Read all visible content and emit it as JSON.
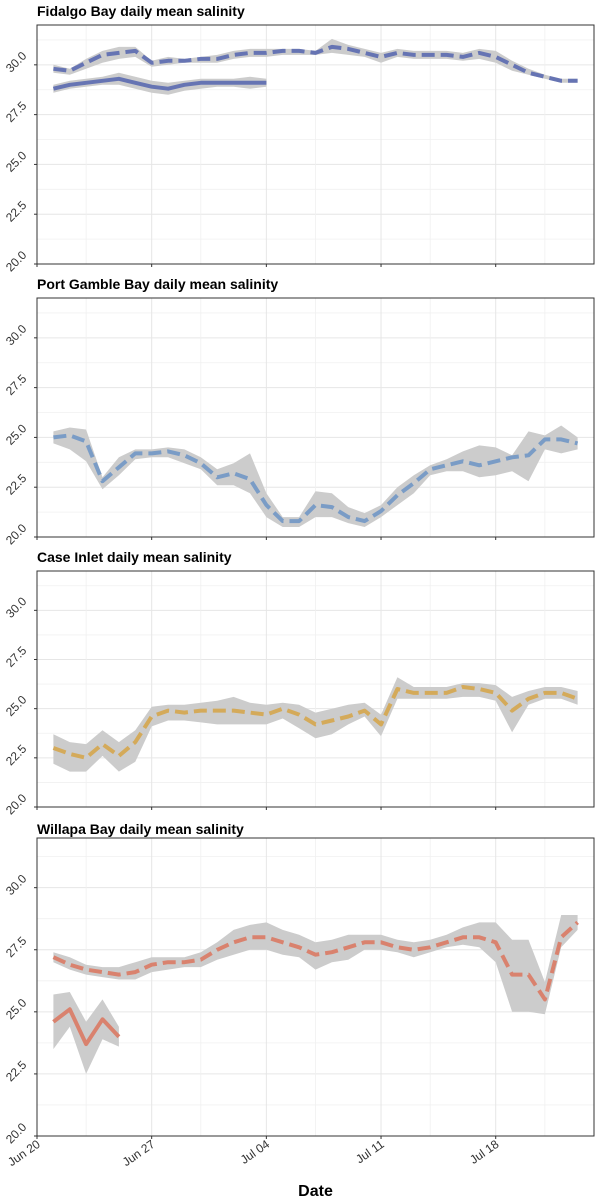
{
  "figure": {
    "xlabel": "Date",
    "x_ticks": [
      {
        "date": "2023-06-20",
        "label": "Jun 20"
      },
      {
        "date": "2023-06-27",
        "label": "Jun 27"
      },
      {
        "date": "2023-07-04",
        "label": "Jul 04"
      },
      {
        "date": "2023-07-11",
        "label": "Jul 11"
      },
      {
        "date": "2023-07-18",
        "label": "Jul 18"
      }
    ],
    "ribbon_color": "#cccccc",
    "grid_color": "#e6e6e6"
  },
  "chart_data": [
    {
      "type": "line",
      "title": "Fidalgo Bay daily mean salinity",
      "xlim": [
        "2023-06-20",
        "2023-07-24"
      ],
      "ylim": [
        20.0,
        32.0
      ],
      "y_ticks": [
        "20.0",
        "22.5",
        "25.0",
        "27.5",
        "30.0"
      ],
      "series": [
        {
          "style": "dashed",
          "color": "#6674b3",
          "x": [
            "2023-06-21",
            "2023-06-22",
            "2023-06-23",
            "2023-06-24",
            "2023-06-25",
            "2023-06-26",
            "2023-06-27",
            "2023-06-28",
            "2023-06-29",
            "2023-06-30",
            "2023-07-01",
            "2023-07-02",
            "2023-07-03",
            "2023-07-04",
            "2023-07-05",
            "2023-07-06",
            "2023-07-07",
            "2023-07-08",
            "2023-07-09",
            "2023-07-10",
            "2023-07-11",
            "2023-07-12",
            "2023-07-13",
            "2023-07-14",
            "2023-07-15",
            "2023-07-16",
            "2023-07-17",
            "2023-07-18",
            "2023-07-19",
            "2023-07-20",
            "2023-07-21",
            "2023-07-22",
            "2023-07-23"
          ],
          "y": [
            29.8,
            29.7,
            30.1,
            30.5,
            30.6,
            30.7,
            30.1,
            30.2,
            30.2,
            30.3,
            30.3,
            30.5,
            30.6,
            30.6,
            30.7,
            30.7,
            30.6,
            30.9,
            30.8,
            30.6,
            30.4,
            30.6,
            30.5,
            30.5,
            30.5,
            30.4,
            30.6,
            30.4,
            30.0,
            29.6,
            29.4,
            29.2,
            29.2
          ],
          "lower": [
            29.6,
            29.5,
            29.8,
            30.1,
            30.3,
            30.4,
            29.9,
            30.0,
            30.1,
            30.1,
            30.1,
            30.3,
            30.4,
            30.4,
            30.5,
            30.5,
            30.5,
            30.6,
            30.5,
            30.4,
            30.1,
            30.4,
            30.3,
            30.3,
            30.3,
            30.2,
            30.3,
            30.1,
            29.7,
            29.5,
            29.3,
            29.1,
            29.1
          ],
          "upper": [
            30.0,
            29.8,
            30.3,
            30.7,
            30.9,
            30.9,
            30.2,
            30.4,
            30.3,
            30.4,
            30.5,
            30.7,
            30.8,
            30.8,
            30.8,
            30.8,
            30.7,
            31.3,
            31.0,
            30.8,
            30.6,
            30.8,
            30.7,
            30.7,
            30.7,
            30.6,
            30.8,
            30.7,
            30.2,
            29.8,
            29.5,
            29.3,
            29.3
          ]
        },
        {
          "style": "solid",
          "color": "#6674b3",
          "x": [
            "2023-06-21",
            "2023-06-22",
            "2023-06-23",
            "2023-06-24",
            "2023-06-25",
            "2023-06-26",
            "2023-06-27",
            "2023-06-28",
            "2023-06-29",
            "2023-06-30",
            "2023-07-01",
            "2023-07-02",
            "2023-07-03",
            "2023-07-04"
          ],
          "y": [
            28.8,
            29.0,
            29.1,
            29.2,
            29.3,
            29.1,
            28.9,
            28.8,
            29.0,
            29.1,
            29.1,
            29.1,
            29.1,
            29.1
          ],
          "lower": [
            28.6,
            28.8,
            28.9,
            29.0,
            29.0,
            28.8,
            28.6,
            28.5,
            28.7,
            28.8,
            28.9,
            28.9,
            28.8,
            28.9
          ],
          "upper": [
            29.0,
            29.2,
            29.3,
            29.4,
            29.6,
            29.4,
            29.2,
            29.1,
            29.2,
            29.3,
            29.3,
            29.3,
            29.4,
            29.3
          ]
        }
      ]
    },
    {
      "type": "line",
      "title": "Port Gamble Bay daily mean salinity",
      "xlim": [
        "2023-06-20",
        "2023-07-24"
      ],
      "ylim": [
        20.0,
        32.0
      ],
      "y_ticks": [
        "20.0",
        "22.5",
        "25.0",
        "27.5",
        "30.0"
      ],
      "series": [
        {
          "style": "dashed",
          "color": "#7a9cc6",
          "x": [
            "2023-06-21",
            "2023-06-22",
            "2023-06-23",
            "2023-06-24",
            "2023-06-25",
            "2023-06-26",
            "2023-06-27",
            "2023-06-28",
            "2023-06-29",
            "2023-06-30",
            "2023-07-01",
            "2023-07-02",
            "2023-07-03",
            "2023-07-04",
            "2023-07-05",
            "2023-07-06",
            "2023-07-07",
            "2023-07-08",
            "2023-07-09",
            "2023-07-10",
            "2023-07-11",
            "2023-07-12",
            "2023-07-13",
            "2023-07-14",
            "2023-07-15",
            "2023-07-16",
            "2023-07-17",
            "2023-07-18",
            "2023-07-19",
            "2023-07-20",
            "2023-07-21",
            "2023-07-22",
            "2023-07-23"
          ],
          "y": [
            25.0,
            25.1,
            24.8,
            22.8,
            23.5,
            24.2,
            24.2,
            24.3,
            24.1,
            23.7,
            23.0,
            23.2,
            22.9,
            21.6,
            20.8,
            20.8,
            21.6,
            21.5,
            21.0,
            20.8,
            21.3,
            22.1,
            22.7,
            23.4,
            23.6,
            23.8,
            23.6,
            23.8,
            24.0,
            24.1,
            24.9,
            24.9,
            24.7
          ],
          "lower": [
            24.7,
            24.4,
            23.8,
            22.4,
            23.1,
            23.9,
            24.0,
            24.0,
            23.7,
            23.4,
            22.6,
            22.6,
            22.2,
            21.0,
            20.5,
            20.5,
            21.0,
            21.0,
            20.7,
            20.5,
            21.0,
            21.6,
            22.2,
            23.1,
            23.3,
            23.3,
            23.0,
            23.1,
            23.3,
            22.8,
            24.4,
            24.2,
            24.4
          ],
          "upper": [
            25.3,
            25.5,
            25.4,
            23.0,
            24.0,
            24.4,
            24.4,
            24.5,
            24.4,
            24.0,
            23.4,
            23.7,
            24.2,
            22.2,
            21.0,
            21.0,
            22.3,
            22.2,
            21.5,
            21.2,
            21.6,
            22.5,
            23.1,
            23.6,
            23.9,
            24.3,
            24.6,
            24.5,
            24.1,
            25.3,
            25.1,
            25.6,
            25.0
          ]
        }
      ]
    },
    {
      "type": "line",
      "title": "Case Inlet daily mean salinity",
      "xlim": [
        "2023-06-20",
        "2023-07-24"
      ],
      "ylim": [
        20.0,
        32.0
      ],
      "y_ticks": [
        "20.0",
        "22.5",
        "25.0",
        "27.5",
        "30.0"
      ],
      "series": [
        {
          "style": "dashed",
          "color": "#d4aa5a",
          "x": [
            "2023-06-21",
            "2023-06-22",
            "2023-06-23",
            "2023-06-24",
            "2023-06-25",
            "2023-06-26",
            "2023-06-27",
            "2023-06-28",
            "2023-06-29",
            "2023-06-30",
            "2023-07-01",
            "2023-07-02",
            "2023-07-03",
            "2023-07-04",
            "2023-07-05",
            "2023-07-06",
            "2023-07-07",
            "2023-07-08",
            "2023-07-09",
            "2023-07-10",
            "2023-07-11",
            "2023-07-12",
            "2023-07-13",
            "2023-07-14",
            "2023-07-15",
            "2023-07-16",
            "2023-07-17",
            "2023-07-18",
            "2023-07-19",
            "2023-07-20",
            "2023-07-21",
            "2023-07-22",
            "2023-07-23"
          ],
          "y": [
            23.0,
            22.7,
            22.5,
            23.2,
            22.6,
            23.3,
            24.6,
            24.9,
            24.8,
            24.9,
            24.9,
            24.9,
            24.8,
            24.7,
            25.0,
            24.7,
            24.2,
            24.4,
            24.6,
            24.9,
            24.2,
            26.0,
            25.8,
            25.8,
            25.8,
            26.1,
            26.0,
            25.8,
            24.9,
            25.5,
            25.8,
            25.8,
            25.5
          ],
          "lower": [
            22.2,
            21.8,
            21.8,
            22.6,
            21.8,
            22.3,
            24.1,
            24.4,
            24.4,
            24.3,
            24.2,
            24.2,
            24.2,
            24.2,
            24.5,
            24.0,
            23.5,
            23.7,
            24.2,
            24.6,
            23.6,
            25.5,
            25.5,
            25.5,
            25.5,
            25.6,
            25.6,
            25.4,
            23.8,
            25.2,
            25.5,
            25.5,
            25.2
          ],
          "upper": [
            23.7,
            23.3,
            23.2,
            23.9,
            23.3,
            23.9,
            25.1,
            25.2,
            25.2,
            25.3,
            25.4,
            25.6,
            25.3,
            25.2,
            25.3,
            25.2,
            24.8,
            25.0,
            25.2,
            25.3,
            24.7,
            26.6,
            26.1,
            26.1,
            26.1,
            26.3,
            26.3,
            26.2,
            25.6,
            25.9,
            26.1,
            26.1,
            25.9
          ]
        }
      ]
    },
    {
      "type": "line",
      "title": "Willapa Bay daily mean salinity",
      "xlim": [
        "2023-06-20",
        "2023-07-24"
      ],
      "ylim": [
        20.0,
        32.0
      ],
      "y_ticks": [
        "20.0",
        "22.5",
        "25.0",
        "27.5",
        "30.0"
      ],
      "series": [
        {
          "style": "dashed",
          "color": "#d9826e",
          "x": [
            "2023-06-21",
            "2023-06-22",
            "2023-06-23",
            "2023-06-24",
            "2023-06-25",
            "2023-06-26",
            "2023-06-27",
            "2023-06-28",
            "2023-06-29",
            "2023-06-30",
            "2023-07-01",
            "2023-07-02",
            "2023-07-03",
            "2023-07-04",
            "2023-07-05",
            "2023-07-06",
            "2023-07-07",
            "2023-07-08",
            "2023-07-09",
            "2023-07-10",
            "2023-07-11",
            "2023-07-12",
            "2023-07-13",
            "2023-07-14",
            "2023-07-15",
            "2023-07-16",
            "2023-07-17",
            "2023-07-18",
            "2023-07-19",
            "2023-07-20",
            "2023-07-21",
            "2023-07-22",
            "2023-07-23"
          ],
          "y": [
            27.2,
            26.9,
            26.7,
            26.6,
            26.5,
            26.6,
            26.9,
            27.0,
            27.0,
            27.1,
            27.5,
            27.8,
            28.0,
            28.0,
            27.8,
            27.6,
            27.3,
            27.4,
            27.6,
            27.8,
            27.8,
            27.6,
            27.5,
            27.6,
            27.8,
            28.0,
            28.0,
            27.8,
            26.5,
            26.5,
            25.5,
            28.0,
            28.6
          ],
          "lower": [
            27.0,
            26.7,
            26.5,
            26.4,
            26.3,
            26.3,
            26.6,
            26.7,
            26.8,
            26.8,
            27.1,
            27.3,
            27.5,
            27.5,
            27.3,
            27.2,
            26.7,
            27.0,
            27.1,
            27.5,
            27.5,
            27.4,
            27.2,
            27.4,
            27.6,
            27.7,
            27.6,
            27.0,
            25.0,
            25.0,
            24.9,
            27.6,
            28.3
          ],
          "upper": [
            27.4,
            27.2,
            26.9,
            26.8,
            26.8,
            27.0,
            27.2,
            27.2,
            27.2,
            27.4,
            27.8,
            28.3,
            28.5,
            28.6,
            28.3,
            28.1,
            27.8,
            27.9,
            28.1,
            28.1,
            28.1,
            27.9,
            27.8,
            27.9,
            28.1,
            28.4,
            28.6,
            28.6,
            27.9,
            27.9,
            26.2,
            28.9,
            28.9
          ]
        },
        {
          "style": "solid",
          "color": "#d9826e",
          "x": [
            "2023-06-21",
            "2023-06-22",
            "2023-06-23",
            "2023-06-24",
            "2023-06-25"
          ],
          "y": [
            24.6,
            25.1,
            23.7,
            24.7,
            24.0
          ],
          "lower": [
            23.5,
            24.4,
            22.5,
            23.9,
            23.6
          ],
          "upper": [
            25.7,
            25.8,
            24.6,
            25.5,
            24.4
          ]
        }
      ]
    }
  ]
}
